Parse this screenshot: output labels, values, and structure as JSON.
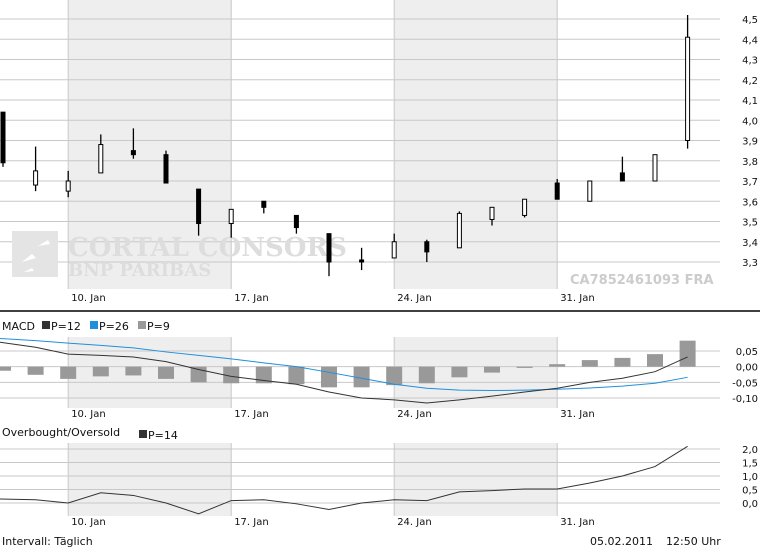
{
  "colors": {
    "band": "#eeeeee",
    "grid": "#c8c8c8",
    "candle": "#000000",
    "macd": "#333333",
    "signal": "#1e90dd",
    "histogram": "#999999",
    "watermark": "#dddddd"
  },
  "watermark": {
    "brand": "CORTAL CONSORS",
    "sub": "BNP PARIBAS",
    "isin": "CA7852461093 FRA"
  },
  "footer": {
    "interval": "Intervall: Täglich",
    "date": "05.02.2011",
    "time": "12:50 Uhr"
  },
  "chart_data": [
    {
      "type": "candlestick",
      "dates": [
        "06.01",
        "07.01",
        "10.01",
        "11.01",
        "12.01",
        "13.01",
        "14.01",
        "17.01",
        "18.01",
        "19.01",
        "20.01",
        "21.01",
        "24.01",
        "25.01",
        "26.01",
        "27.01",
        "28.01",
        "31.01",
        "01.02",
        "02.02",
        "03.02",
        "04.02"
      ],
      "open": [
        4.04,
        3.68,
        3.65,
        3.74,
        3.85,
        3.83,
        3.66,
        3.49,
        3.6,
        3.53,
        3.44,
        3.31,
        3.32,
        3.4,
        3.37,
        3.51,
        3.53,
        3.69,
        3.6,
        3.74,
        3.7,
        3.9
      ],
      "high": [
        4.04,
        3.87,
        3.75,
        3.93,
        3.96,
        3.85,
        3.66,
        3.56,
        3.6,
        3.53,
        3.44,
        3.37,
        3.44,
        3.41,
        3.55,
        3.57,
        3.61,
        3.71,
        3.7,
        3.82,
        3.83,
        4.52
      ],
      "close": [
        3.79,
        3.75,
        3.7,
        3.88,
        3.83,
        3.69,
        3.49,
        3.56,
        3.57,
        3.47,
        3.3,
        3.3,
        3.4,
        3.35,
        3.54,
        3.57,
        3.61,
        3.61,
        3.7,
        3.7,
        3.83,
        4.41
      ],
      "low": [
        3.77,
        3.65,
        3.62,
        3.74,
        3.81,
        3.69,
        3.43,
        3.42,
        3.54,
        3.44,
        3.23,
        3.26,
        3.32,
        3.3,
        3.37,
        3.48,
        3.52,
        3.61,
        3.6,
        3.7,
        3.7,
        3.86
      ],
      "x_ticks": [
        {
          "index": 2,
          "label": "10. Jan"
        },
        {
          "index": 7,
          "label": "17. Jan"
        },
        {
          "index": 12,
          "label": "24. Jan"
        },
        {
          "index": 17,
          "label": "31. Jan"
        }
      ],
      "y_ticks": [
        "4,5",
        "4,4",
        "4,3",
        "4,2",
        "4,1",
        "4,0",
        "3,9",
        "3,8",
        "3,7",
        "3,6",
        "3,5",
        "3,4",
        "3,3"
      ],
      "y_tick_values": [
        4.5,
        4.4,
        4.3,
        4.2,
        4.1,
        4.0,
        3.9,
        3.8,
        3.7,
        3.6,
        3.5,
        3.4,
        3.3
      ],
      "grid": true
    },
    {
      "type": "line+bar",
      "title": "MACD",
      "legend": [
        {
          "label": "P=12",
          "color": "#333333"
        },
        {
          "label": "P=26",
          "color": "#1e90dd"
        },
        {
          "label": "P=9",
          "color": "#999999"
        }
      ],
      "series": [
        {
          "name": "P=12",
          "type": "line",
          "values": [
            0.078,
            0.062,
            0.04,
            0.036,
            0.031,
            0.016,
            -0.009,
            -0.031,
            -0.044,
            -0.056,
            -0.081,
            -0.1,
            -0.106,
            -0.116,
            -0.106,
            -0.094,
            -0.081,
            -0.069,
            -0.05,
            -0.037,
            -0.016,
            0.031
          ]
        },
        {
          "name": "P=26",
          "type": "line",
          "values": [
            0.09,
            0.083,
            0.075,
            0.068,
            0.06,
            0.047,
            0.036,
            0.025,
            0.012,
            0.0,
            -0.018,
            -0.037,
            -0.056,
            -0.069,
            -0.075,
            -0.076,
            -0.075,
            -0.072,
            -0.068,
            -0.062,
            -0.053,
            -0.034
          ]
        },
        {
          "name": "P=9",
          "type": "bar",
          "values": [
            -0.013,
            -0.026,
            -0.039,
            -0.031,
            -0.028,
            -0.039,
            -0.05,
            -0.053,
            -0.053,
            -0.056,
            -0.066,
            -0.066,
            -0.059,
            -0.053,
            -0.034,
            -0.019,
            -0.004,
            0.008,
            0.021,
            0.028,
            0.04,
            0.083
          ]
        }
      ],
      "y_ticks": [
        "0,05",
        "0,00",
        "-0,05",
        "-0,10"
      ],
      "y_tick_values": [
        0.05,
        0.0,
        -0.05,
        -0.1
      ],
      "x_ticks": [
        "10. Jan",
        "17. Jan",
        "24. Jan",
        "31. Jan"
      ]
    },
    {
      "type": "line",
      "title": "Overbought/Oversold",
      "legend": [
        {
          "label": "P=14",
          "color": "#333333"
        }
      ],
      "series": [
        {
          "name": "P=14",
          "values": [
            0.15,
            0.12,
            0.0,
            0.38,
            0.28,
            0.0,
            -0.4,
            0.09,
            0.12,
            -0.03,
            -0.24,
            0.0,
            0.12,
            0.09,
            0.41,
            0.46,
            0.52,
            0.52,
            0.74,
            1.0,
            1.35,
            2.1
          ]
        }
      ],
      "y_ticks": [
        "2,0",
        "1,5",
        "1,0",
        "0,5",
        "0,0"
      ],
      "y_tick_values": [
        2.0,
        1.5,
        1.0,
        0.5,
        0.0
      ],
      "x_ticks": [
        "10. Jan",
        "17. Jan",
        "24. Jan",
        "31. Jan"
      ]
    }
  ]
}
